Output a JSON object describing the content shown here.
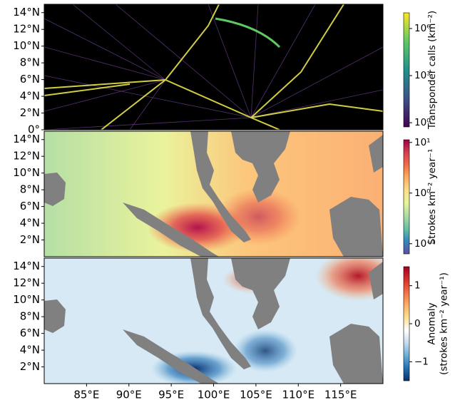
{
  "chart_data": [
    {
      "type": "map",
      "xlim": [
        80,
        120
      ],
      "ylim": [
        0,
        15
      ],
      "yticks": [
        {
          "value": 0,
          "label": "0°"
        },
        {
          "value": 2,
          "label": "2°N"
        },
        {
          "value": 4,
          "label": "4°N"
        },
        {
          "value": 6,
          "label": "6°N"
        },
        {
          "value": 8,
          "label": "8°N"
        },
        {
          "value": 10,
          "label": "10°N"
        },
        {
          "value": 12,
          "label": "12°N"
        },
        {
          "value": 14,
          "label": "14°N"
        }
      ],
      "colorbar": {
        "label": [
          "Transponder calls (km⁻²)"
        ],
        "log": true,
        "lim": [
          0.54,
          10000000
        ],
        "ticks": [
          {
            "value": 1,
            "label": "10⁰"
          },
          {
            "value": 1000,
            "label": "10³"
          },
          {
            "value": 1000000,
            "label": "10⁶"
          }
        ],
        "colors": [
          "#440154",
          "#3b528b",
          "#21918c",
          "#5ec962",
          "#fde725"
        ]
      }
    },
    {
      "type": "map",
      "xlim": [
        80,
        120
      ],
      "ylim": [
        0,
        15
      ],
      "yticks": [
        {
          "value": 2,
          "label": "2°N"
        },
        {
          "value": 4,
          "label": "4°N"
        },
        {
          "value": 6,
          "label": "6°N"
        },
        {
          "value": 8,
          "label": "8°N"
        },
        {
          "value": 10,
          "label": "10°N"
        },
        {
          "value": 12,
          "label": "12°N"
        },
        {
          "value": 14,
          "label": "14°N"
        }
      ],
      "colorbar": {
        "label": [
          "Strokes km⁻² year⁻¹"
        ],
        "log": true,
        "lim": [
          0.063,
          11.3
        ],
        "ticks": [
          {
            "value": 0.1,
            "label": "10⁻¹"
          },
          {
            "value": 1,
            "label": "10⁰"
          },
          {
            "value": 10,
            "label": "10¹"
          }
        ],
        "colors": [
          "#5e4fa2",
          "#3288bd",
          "#66c2a5",
          "#abdda4",
          "#e6f598",
          "#fee08b",
          "#fdae61",
          "#f46d43",
          "#d53e4f",
          "#9e0142"
        ]
      }
    },
    {
      "type": "map",
      "xlim": [
        80,
        120
      ],
      "ylim": [
        0,
        15
      ],
      "yticks": [
        {
          "value": 2,
          "label": "2°N"
        },
        {
          "value": 4,
          "label": "4°N"
        },
        {
          "value": 6,
          "label": "6°N"
        },
        {
          "value": 8,
          "label": "8°N"
        },
        {
          "value": 10,
          "label": "10°N"
        },
        {
          "value": 12,
          "label": "12°N"
        },
        {
          "value": 14,
          "label": "14°N"
        }
      ],
      "xticks": [
        {
          "value": 85,
          "label": "85°E"
        },
        {
          "value": 90,
          "label": "90°E"
        },
        {
          "value": 95,
          "label": "95°E"
        },
        {
          "value": 100,
          "label": "100°E"
        },
        {
          "value": 105,
          "label": "105°E"
        },
        {
          "value": 110,
          "label": "110°E"
        },
        {
          "value": 115,
          "label": "115°E"
        }
      ],
      "colorbar": {
        "label": [
          "Anomaly",
          "(strokes km⁻² year⁻¹)"
        ],
        "log": false,
        "lim": [
          -1.5,
          1.5
        ],
        "ticks": [
          {
            "value": -1,
            "label": "−1"
          },
          0,
          1
        ],
        "colors": [
          "#08306b",
          "#2171b5",
          "#6baed6",
          "#c6dbef",
          "#ffffff",
          "#fee090",
          "#fdae61",
          "#f46d43",
          "#d73027",
          "#a50026"
        ]
      }
    }
  ]
}
